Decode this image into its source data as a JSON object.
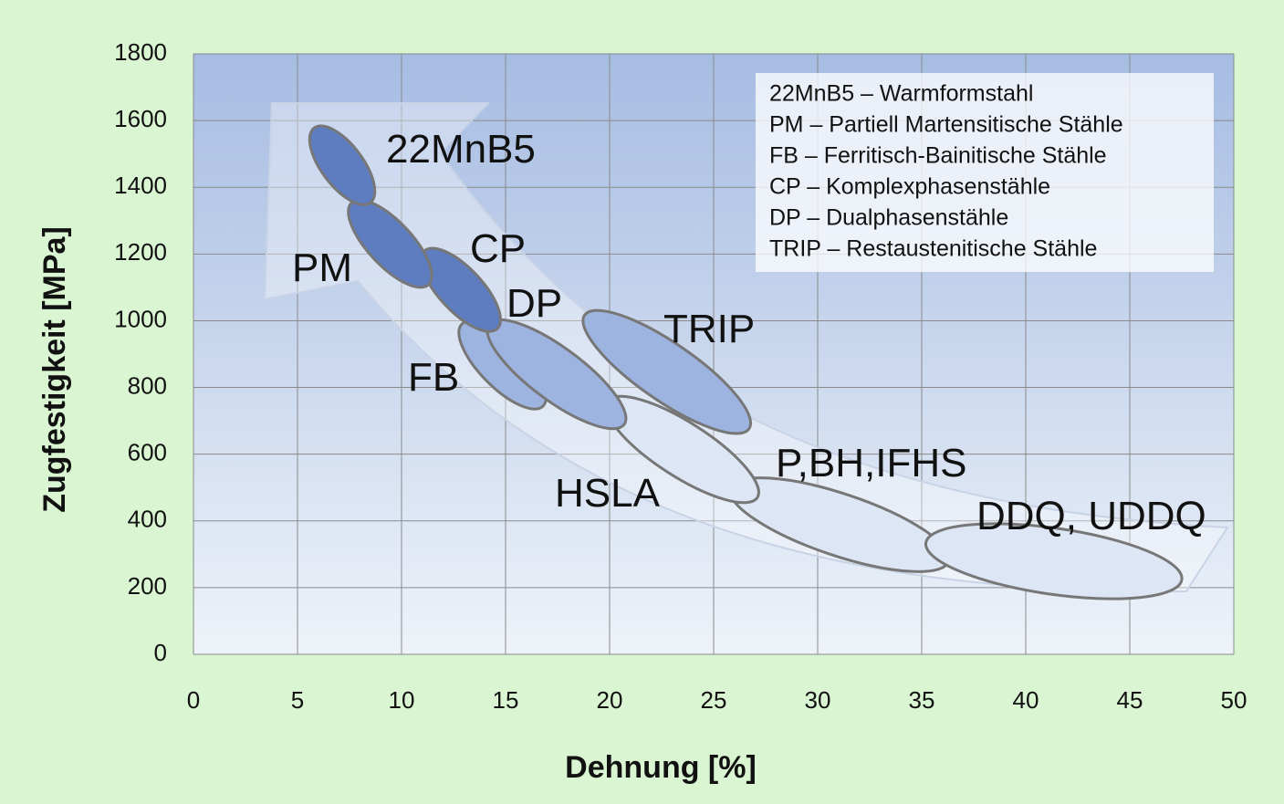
{
  "chart_data": {
    "type": "ellipse",
    "xlabel": "Dehnung [%]",
    "ylabel": "Zugfestigkeit [MPa]",
    "xlim": [
      0,
      50
    ],
    "ylim": [
      0,
      1800
    ],
    "xticks": [
      0,
      5,
      10,
      15,
      20,
      25,
      30,
      35,
      40,
      45,
      50
    ],
    "yticks": [
      0,
      200,
      400,
      600,
      800,
      1000,
      1200,
      1400,
      1600,
      1800
    ],
    "grid": true,
    "legend": [
      "22MnB5 – Warmformstahl",
      "PM – Partiell Martensitische Stähle",
      "FB – Ferritisch-Bainitische Stähle",
      "CP – Komplexphasenstähle",
      "DP – Dualphasenstähle",
      "TRIP – Restaustenitische Stähle"
    ],
    "series": [
      {
        "name": "P,BH,IFHS",
        "color": "#dde6f5",
        "x": [
          25.8,
          36.3
        ],
        "y": [
          498,
          279
        ]
      },
      {
        "name": "DDQ, UDDQ",
        "color": "#dde6f5",
        "x": [
          35.2,
          47.5
        ],
        "y": [
          334,
          224
        ]
      },
      {
        "name": "HSLA",
        "color": "#dde6f5",
        "x": [
          19.9,
          27.1
        ],
        "y": [
          758,
          470
        ]
      },
      {
        "name": "TRIP",
        "color": "#9db4e0",
        "x": [
          18.8,
          26.7
        ],
        "y": [
          1017,
          676
        ]
      },
      {
        "name": "FB",
        "color": "#9db4e0",
        "x": [
          12.9,
          16.8
        ],
        "y": [
          990,
          744
        ]
      },
      {
        "name": "DP",
        "color": "#9db4e0",
        "x": [
          14.2,
          20.7
        ],
        "y": [
          990,
          689
        ]
      },
      {
        "name": "CP",
        "color": "#5d7dc0",
        "x": [
          11.1,
          14.6
        ],
        "y": [
          1209,
          976
        ]
      },
      {
        "name": "PM",
        "color": "#5d7dc0",
        "x": [
          7.6,
          11.3
        ],
        "y": [
          1354,
          1108
        ]
      },
      {
        "name": "22MnB5",
        "color": "#5d7dc0",
        "x": [
          5.8,
          8.5
        ],
        "y": [
          1578,
          1354
        ]
      }
    ]
  }
}
